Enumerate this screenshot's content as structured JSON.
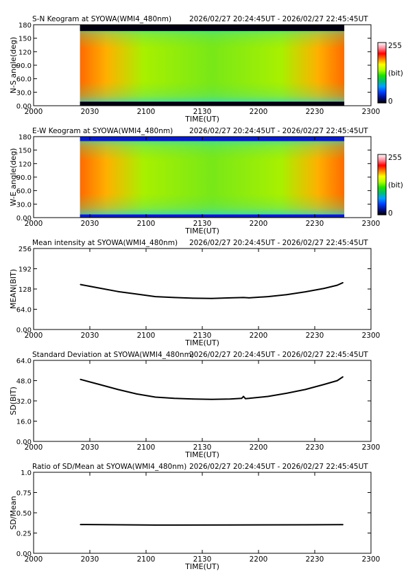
{
  "time_axis": {
    "xlabel": "TIME(UT)",
    "ticks": [
      "2000",
      "2030",
      "2100",
      "2130",
      "2200",
      "2230",
      "2300"
    ],
    "data_start": "20:24:45",
    "data_end": "22:45:45"
  },
  "colorbar": {
    "max_label": "255",
    "min_label": "0",
    "unit_label": "(bit)",
    "stops": [
      "#000000",
      "#001090",
      "#0040ff",
      "#00a0ff",
      "#00c070",
      "#20e000",
      "#b0ff00",
      "#ffff00",
      "#ff8000",
      "#ff0000",
      "#ff90a0",
      "#ffffff"
    ]
  },
  "chart_data": [
    {
      "type": "heatmap",
      "title": "S-N Keogram at SYOWA(WMI4_480nm)",
      "time_range": "2026/02/27 20:24:45UT - 2026/02/27 22:45:45UT",
      "ylabel": "N-S angle(deg)",
      "yticks": [
        "0.00",
        "30.0",
        "60.0",
        "90.0",
        "120",
        "150",
        "180"
      ],
      "ylim": [
        0,
        180
      ],
      "edge_band_deg": [
        [
          0,
          9
        ],
        [
          166,
          180
        ]
      ]
    },
    {
      "type": "heatmap",
      "title": "E-W Keogram at SYOWA(WMI4_480nm)",
      "time_range": "2026/02/27 20:24:45UT - 2026/02/27 22:45:45UT",
      "ylabel": "W-E angle(deg)",
      "yticks": [
        "0.00",
        "30.0",
        "60.0",
        "90.0",
        "120",
        "150",
        "180"
      ],
      "ylim": [
        0,
        180
      ],
      "edge_band_deg": [
        [
          0,
          7
        ],
        [
          170,
          180
        ]
      ]
    },
    {
      "type": "line",
      "title": "Mean intensity at SYOWA(WMI4_480nm)",
      "time_range": "2026/02/27 20:24:45UT - 2026/02/27 22:45:45UT",
      "ylabel": "MEAN(BIT)",
      "yticks": [
        "0.00",
        "64.0",
        "128",
        "192",
        "256"
      ],
      "ylim": [
        0,
        256
      ],
      "series": [
        {
          "x": [
            "20:25",
            "20:35",
            "20:45",
            "20:55",
            "21:05",
            "21:15",
            "21:25",
            "21:35",
            "21:45",
            "21:52",
            "21:55",
            "22:05",
            "22:15",
            "22:25",
            "22:35",
            "22:42",
            "22:45"
          ],
          "values": [
            142,
            131,
            120,
            112,
            104,
            101,
            99,
            98,
            100,
            101,
            100,
            104,
            110,
            119,
            130,
            140,
            148
          ]
        }
      ]
    },
    {
      "type": "line",
      "title": "Standard Deviation at SYOWA(WMI4_480nm)",
      "time_range": "2026/02/27 20:24:45UT - 2026/02/27 22:45:45UT",
      "ylabel": "SD(BIT)",
      "yticks": [
        "0.00",
        "16.0",
        "32.0",
        "48.0",
        "64.0"
      ],
      "ylim": [
        0,
        64
      ],
      "series": [
        {
          "x": [
            "20:25",
            "20:35",
            "20:45",
            "20:55",
            "21:05",
            "21:15",
            "21:25",
            "21:35",
            "21:45",
            "21:51",
            "21:52",
            "21:53",
            "21:55",
            "22:05",
            "22:15",
            "22:25",
            "22:35",
            "22:42",
            "22:45"
          ],
          "values": [
            49,
            45,
            41,
            37.5,
            35,
            34,
            33.5,
            33.2,
            33.5,
            34,
            35.5,
            33.8,
            34,
            35.5,
            38,
            41,
            45,
            48,
            51
          ]
        }
      ]
    },
    {
      "type": "line",
      "title": "Ratio of SD/Mean at SYOWA(WMI4_480nm)",
      "time_range": "2026/02/27 20:24:45UT - 2026/02/27 22:45:45UT",
      "ylabel": "SD/Mean",
      "yticks": [
        "0.00",
        "0.25",
        "0.50",
        "0.75",
        "1.0"
      ],
      "ylim": [
        0,
        1.0
      ],
      "series": [
        {
          "x": [
            "20:25",
            "21:05",
            "21:45",
            "22:25",
            "22:45"
          ],
          "values": [
            0.355,
            0.348,
            0.349,
            0.352,
            0.353
          ]
        }
      ]
    }
  ]
}
